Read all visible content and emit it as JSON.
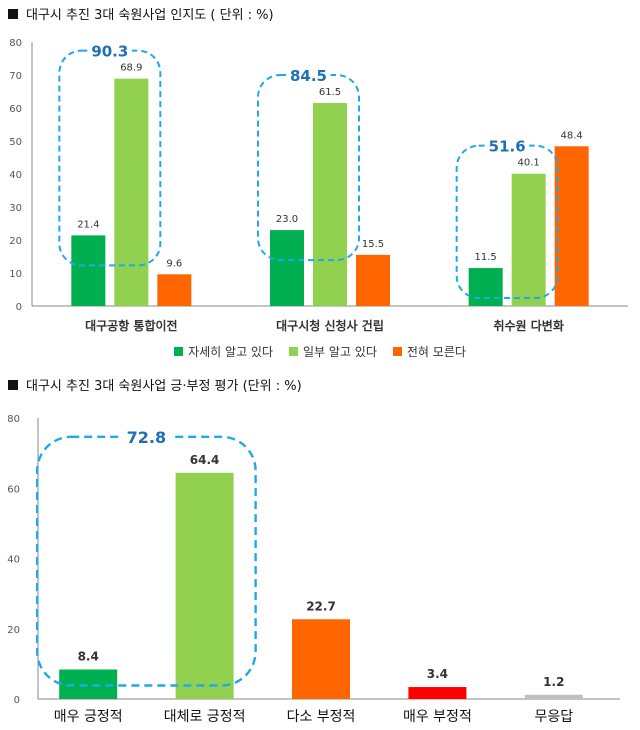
{
  "title1": "대구시 추진 3대 숙원사업 인지도 ( 단위 : %)",
  "title2": "대구시 추진 3대 숙원사업 긍·부정 평가 (단위 : %)",
  "colors": {
    "dark_green": "#00B050",
    "light_green": "#92D050",
    "orange": "#FF6600",
    "red": "#FF0000",
    "gray": "#BFBFBF",
    "highlight": "#1EAAE7",
    "highlight_text": "#1F6FB5"
  },
  "chart_data": [
    {
      "type": "bar",
      "categories": [
        "대구공항 통합이전",
        "대구시청 신청사 건립",
        "취수원 다변화"
      ],
      "series": [
        {
          "name": "자세히 알고 있다",
          "values": [
            21.4,
            23.0,
            11.5
          ],
          "color": "#00B050"
        },
        {
          "name": "일부 알고 있다",
          "values": [
            68.9,
            61.5,
            40.1
          ],
          "color": "#92D050"
        },
        {
          "name": "전혀 모른다",
          "values": [
            9.6,
            15.5,
            48.4
          ],
          "color": "#FF6600"
        }
      ],
      "annotations": [
        "90.3",
        "84.5",
        "51.6"
      ],
      "ylim": [
        0,
        80
      ],
      "yticks": [
        0,
        10,
        20,
        30,
        40,
        50,
        60,
        70,
        80
      ],
      "legend": "bottom",
      "grid": false
    },
    {
      "type": "bar",
      "categories": [
        "매우 긍정적",
        "대체로 긍정적",
        "다소 부정적",
        "매우 부정적",
        "무응답"
      ],
      "values": [
        8.4,
        64.4,
        22.7,
        3.4,
        1.2
      ],
      "value_labels": [
        "8.4",
        "64.4",
        "22.7",
        "3.4",
        "1.2"
      ],
      "colors": [
        "#00B050",
        "#92D050",
        "#FF6600",
        "#FF0000",
        "#BFBFBF"
      ],
      "annotations": [
        "72.8"
      ],
      "ylim": [
        0,
        80
      ],
      "yticks": [
        0,
        20,
        40,
        60,
        80
      ],
      "grid": false
    }
  ]
}
